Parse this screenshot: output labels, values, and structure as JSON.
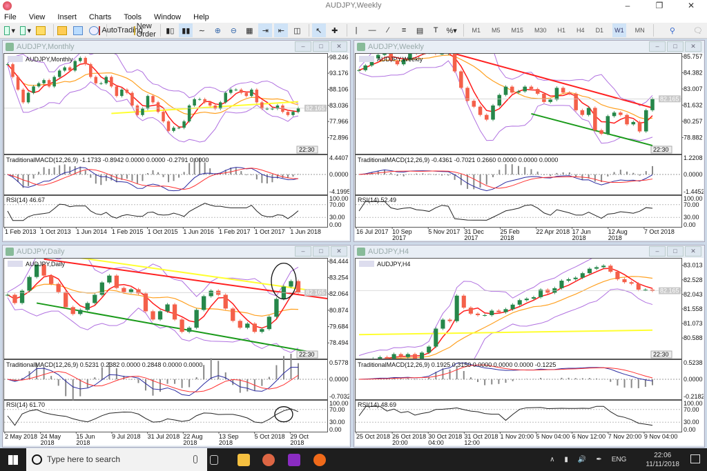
{
  "app": {
    "title": "AUDJPY,Weekly",
    "menu": [
      "File",
      "View",
      "Insert",
      "Charts",
      "Tools",
      "Window",
      "Help"
    ]
  },
  "toolbar": {
    "autotrading": "AutoTrading",
    "new_order": "New Order",
    "timeframes": [
      "M1",
      "M5",
      "M15",
      "M30",
      "H1",
      "H4",
      "D1",
      "W1",
      "MN"
    ],
    "active_timeframe": "W1"
  },
  "colors": {
    "bull": "#26874a",
    "bear": "#f4604a",
    "ma_fast": "#ff1a1a",
    "ma_slow": "#ffa020",
    "bands": "#b070e0",
    "macd": "#2a2aa0",
    "signal": "#ff3030",
    "trend_up": "#ff2020",
    "trend_down": "#1a9a1a",
    "level": "#ffff30"
  },
  "charts": [
    {
      "title": "AUDJPY,Monthly",
      "symbol_label": "AUDJPY,Monthly",
      "current_price": "82.165",
      "timer": "22:30",
      "price_ticks": [
        "98.246",
        "93.176",
        "88.106",
        "83.036",
        "77.966",
        "72.896"
      ],
      "ylim": [
        67.8,
        99.5
      ],
      "macd_label": "TraditionalMACD(12,26,9) -1.1733 -0.8942 0.0000 0.0000 -0.2791 0.0000",
      "macd_ticks": [
        "4.4407",
        "0.0000",
        "-4.1995"
      ],
      "rsi_label": "RSI(14) 46.67",
      "rsi_ticks": [
        "100.00",
        "70.00",
        "30.00",
        "0.00"
      ],
      "dates": [
        "1 Feb 2013",
        "1 Oct 2013",
        "1 Jun 2014",
        "1 Feb 2015",
        "1 Oct 2015",
        "1 Jun 2016",
        "1 Feb 2017",
        "1 Oct 2017",
        "1 Jun 2018"
      ],
      "closes": [
        96,
        92,
        88,
        84,
        87,
        89,
        90,
        91,
        89,
        92,
        94,
        95,
        94,
        97,
        98,
        96,
        92,
        90,
        90,
        92,
        89,
        86,
        88,
        87,
        83,
        80,
        82,
        86,
        84,
        81,
        78,
        75,
        76,
        76,
        78,
        83,
        85,
        85,
        84,
        83,
        82,
        84,
        87,
        88,
        88,
        87,
        86,
        88,
        84,
        82,
        82,
        82,
        83,
        81,
        80,
        81,
        82.165
      ],
      "lines": [
        {
          "color": "level",
          "p": [
            [
              20,
              80.5
            ],
            [
              56,
              84.2
            ]
          ]
        }
      ]
    },
    {
      "title": "AUDJPY,Weekly",
      "symbol_label": "AUDJPY,Weekly",
      "current_price": "82.165",
      "timer": "22:30",
      "price_ticks": [
        "85.757",
        "84.382",
        "83.007",
        "81.632",
        "80.257",
        "78.882"
      ],
      "ylim": [
        77.5,
        86.05
      ],
      "macd_label": "TraditionalMACD(12,26,9) -0.4361 -0.7021 0.2660 0.0000 0.0000 0.0000",
      "macd_ticks": [
        "1.2208",
        "0.0000",
        "-1.4452"
      ],
      "rsi_label": "RSI(14) 52.49",
      "rsi_ticks": [
        "100.00",
        "70.00",
        "30.00",
        "0.00"
      ],
      "dates": [
        "16 Jul 2017",
        "10 Sep 2017",
        "5 Nov 2017",
        "31 Dec 2017",
        "25 Feb 2018",
        "22 Apr 2018",
        "17 Jun 2018",
        "12 Aug 2018",
        "7 Oct 2018"
      ],
      "closes": [
        84.6,
        85.0,
        85.6,
        85.9,
        86.2,
        85.4,
        85.1,
        85.5,
        86.2,
        86.0,
        86.1,
        86.1,
        86.0,
        86.0,
        86.1,
        84.5,
        83.1,
        82.0,
        81.5,
        80.8,
        80.4,
        81.6,
        82.5,
        83.2,
        82.7,
        82.8,
        83.2,
        83.0,
        82.6,
        81.9,
        82.1,
        83.1,
        82.7,
        82.6,
        81.2,
        80.8,
        81.4,
        79.5,
        79.2,
        80.7,
        81.0,
        80.8,
        80.0,
        80.2,
        79.4,
        81.2,
        82.165
      ],
      "lines": [
        {
          "color": "trend_up",
          "p": [
            [
              15,
              86.0
            ],
            [
              46,
              81.4
            ]
          ]
        },
        {
          "color": "trend_down",
          "p": [
            [
              27,
              80.9
            ],
            [
              46,
              78.2
            ]
          ]
        }
      ]
    },
    {
      "title": "AUDJPY,Daily",
      "symbol_label": "AUDJPY,Daily",
      "current_price": "82.165",
      "timer": "22:30",
      "price_ticks": [
        "84.444",
        "83.254",
        "82.064",
        "80.874",
        "79.684",
        "78.494"
      ],
      "ylim": [
        77.35,
        84.69
      ],
      "macd_label": "TraditionalMACD(12,26,9) 0.5231 0.2382 0.0000 0.2848 0.0000 0.0000",
      "macd_ticks": [
        "0.5778",
        "0.0000",
        "-0.7032"
      ],
      "rsi_label": "RSI(14) 61.70",
      "rsi_ticks": [
        "100.00",
        "70.00",
        "30.00",
        "0.00"
      ],
      "dates": [
        "2 May 2018",
        "24 May 2018",
        "15 Jun 2018",
        "9 Jul 2018",
        "31 Jul 2018",
        "22 Aug 2018",
        "13 Sep 2018",
        "5 Oct 2018",
        "29 Oct 2018"
      ],
      "closes": [
        82,
        81.4,
        82.3,
        83.3,
        84.2,
        83.4,
        82.8,
        82.2,
        81.1,
        80.6,
        80.9,
        81.4,
        82.0,
        82.9,
        83.4,
        82.5,
        82.2,
        82.4,
        82.1,
        80.8,
        80.2,
        80.8,
        81.3,
        80.2,
        79.3,
        79.6,
        80.9,
        81.9,
        82.3,
        82.0,
        81.0,
        80.1,
        79.6,
        79.9,
        79.3,
        79.5,
        80.4,
        81.7,
        82.6,
        83.0,
        82.165
      ],
      "lines": [
        {
          "color": "trend_up",
          "p": [
            [
              5,
              84.6
            ],
            [
              47,
              81.5
            ]
          ]
        },
        {
          "color": "trend_down",
          "p": [
            [
              4,
              81.4
            ],
            [
              42,
              77.8
            ]
          ]
        },
        {
          "color": "level",
          "p": [
            [
              10,
              84.69
            ],
            [
              42,
              82.3
            ]
          ]
        }
      ],
      "annotations": "circle"
    },
    {
      "title": "AUDJPY,H4",
      "symbol_label": "AUDJPY,H4",
      "current_price": "82.165",
      "timer": "22:30",
      "price_ticks": [
        "83.013",
        "82.528",
        "82.043",
        "81.558",
        "81.073",
        "80.588"
      ],
      "ylim": [
        79.9,
        83.26
      ],
      "macd_label": "TraditionalMACD(12,26,9) 0.1925 0.3150 0.0000 0.0000 0.0000 -0.1225",
      "macd_ticks": [
        "0.5238",
        "0.0000",
        "-0.2182"
      ],
      "rsi_label": "RSI(14) 48.69",
      "rsi_ticks": [
        "100.00",
        "70.00",
        "30.00",
        "0.00"
      ],
      "dates": [
        "25 Oct 2018",
        "26 Oct 2018 20:00",
        "30 Oct 2018 04:00",
        "31 Oct 2018 12:00",
        "1 Nov 20:00",
        "5 Nov 04:00",
        "6 Nov 12:00",
        "7 Nov 20:00",
        "9 Nov 04:00"
      ],
      "closes": [
        79.8,
        79.85,
        79.9,
        79.95,
        79.9,
        80.05,
        79.95,
        80.05,
        79.9,
        80.1,
        80.3,
        80.9,
        81.2,
        81.15,
        82.0,
        81.6,
        81.4,
        81.35,
        81.35,
        81.5,
        81.45,
        81.55,
        81.7,
        81.85,
        81.9,
        81.95,
        82.2,
        82.1,
        82.25,
        82.5,
        82.55,
        82.6,
        82.75,
        82.9,
        82.95,
        83.0,
        82.8,
        82.55,
        82.45,
        82.4,
        82.2,
        82.2,
        82.165
      ],
      "lines": [
        {
          "color": "level",
          "p": [
            [
              0,
              80.7
            ],
            [
              42,
              80.85
            ]
          ]
        }
      ]
    }
  ],
  "taskbar": {
    "search_placeholder": "Type here to search",
    "lang": "ENG",
    "time": "22:06",
    "date": "11/11/2018"
  }
}
